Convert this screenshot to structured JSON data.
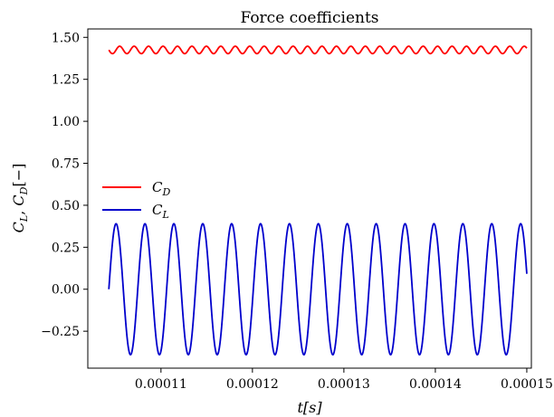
{
  "chart_data": {
    "type": "line",
    "title": "Force coefficients",
    "xlabel": "t[s]",
    "ylabel": "C_L, C_D[−]",
    "xlim": [
      0.000102,
      0.0001505
    ],
    "ylim": [
      -0.47,
      1.55
    ],
    "xticks": [
      0.00011,
      0.00012,
      0.00013,
      0.00014,
      0.00015
    ],
    "xtick_labels": [
      "0.00011",
      "0.00012",
      "0.00013",
      "0.00014",
      "0.00015"
    ],
    "yticks": [
      -0.25,
      0.0,
      0.25,
      0.5,
      0.75,
      1.0,
      1.25,
      1.5
    ],
    "ytick_labels": [
      "−0.25",
      "0.00",
      "0.25",
      "0.50",
      "0.75",
      "1.00",
      "1.25",
      "1.50"
    ],
    "grid": false,
    "legend": "center-left",
    "series": [
      {
        "name": "C_D",
        "color": "#ff0000",
        "signal": {
          "t_start": 0.0001043,
          "t_end": 0.00015,
          "mean": 1.425,
          "amplitude": 0.022,
          "period": 1.58e-06,
          "phase": 3.1416
        }
      },
      {
        "name": "C_L",
        "color": "#0000cc",
        "signal": {
          "t_start": 0.0001043,
          "t_end": 0.00015,
          "mean": 0.0,
          "amplitude": 0.39,
          "period": 3.16e-06,
          "phase": 0.0
        }
      }
    ]
  }
}
